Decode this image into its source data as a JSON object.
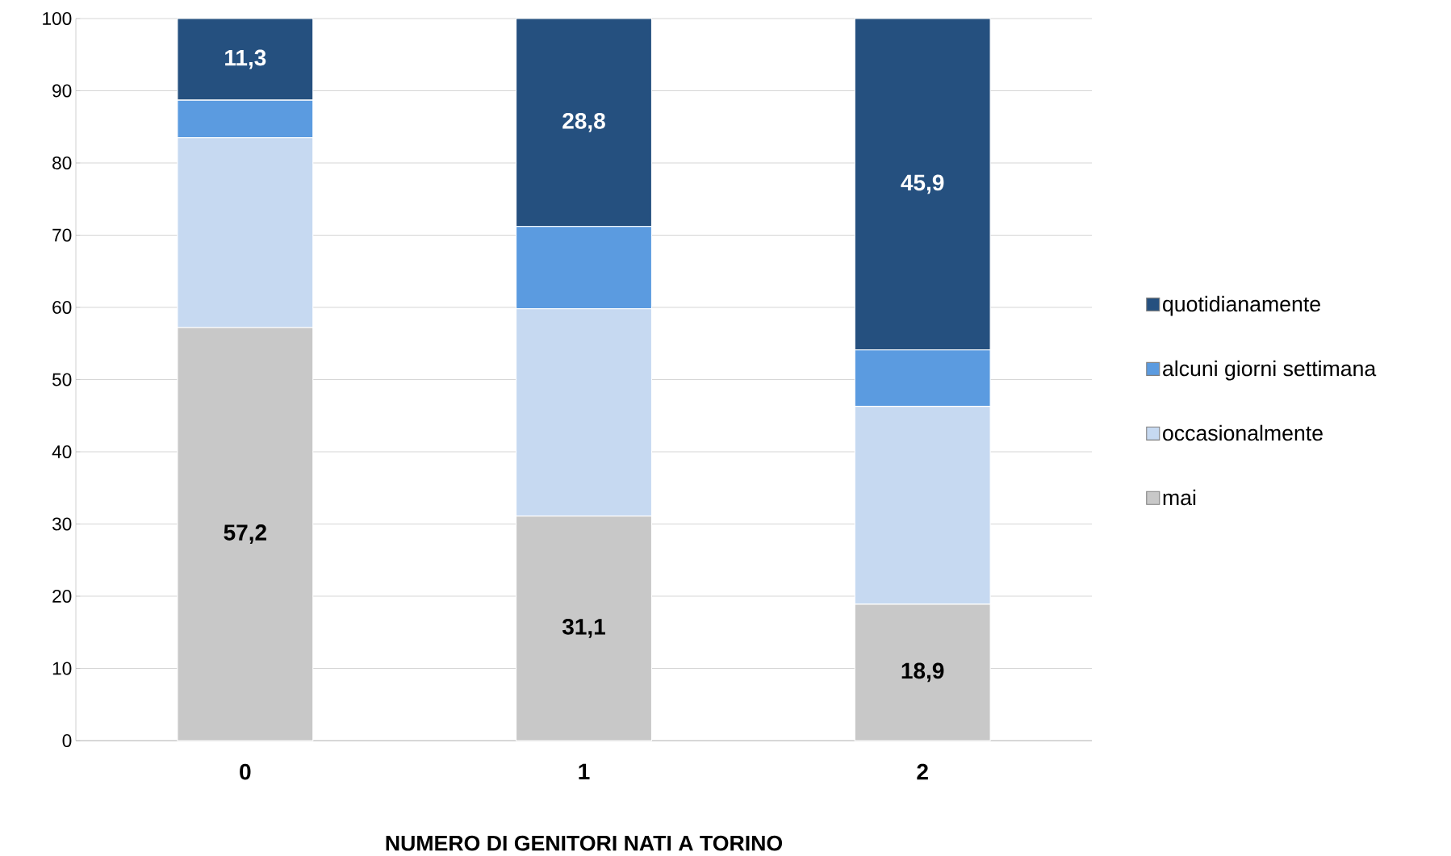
{
  "chart_data": {
    "type": "bar",
    "stacked": true,
    "xlabel": "NUMERO DI GENITORI NATI A TORINO",
    "categories": [
      "0",
      "1",
      "2"
    ],
    "series": [
      {
        "name": "mai",
        "color": "#c8c8c8",
        "values": [
          57.2,
          31.1,
          18.9
        ],
        "value_labels": [
          "57,2",
          "31,1",
          "18,9"
        ]
      },
      {
        "name": "occasionalmente",
        "color": "#c6d9f1",
        "values": [
          26.3,
          28.7,
          27.4
        ],
        "value_labels": [
          null,
          null,
          null
        ]
      },
      {
        "name": "alcuni giorni settimana",
        "color": "#5b9be0",
        "values": [
          5.2,
          11.4,
          7.8
        ],
        "value_labels": [
          null,
          null,
          null
        ]
      },
      {
        "name": "quotidianamente",
        "color": "#25507f",
        "values": [
          11.3,
          28.8,
          45.9
        ],
        "value_labels": [
          "11,3",
          "28,8",
          "45,9"
        ]
      }
    ],
    "ylim": [
      0,
      100
    ],
    "yticks": [
      0,
      10,
      20,
      30,
      40,
      50,
      60,
      70,
      80,
      90,
      100
    ],
    "grid": "y",
    "legend": "right"
  }
}
